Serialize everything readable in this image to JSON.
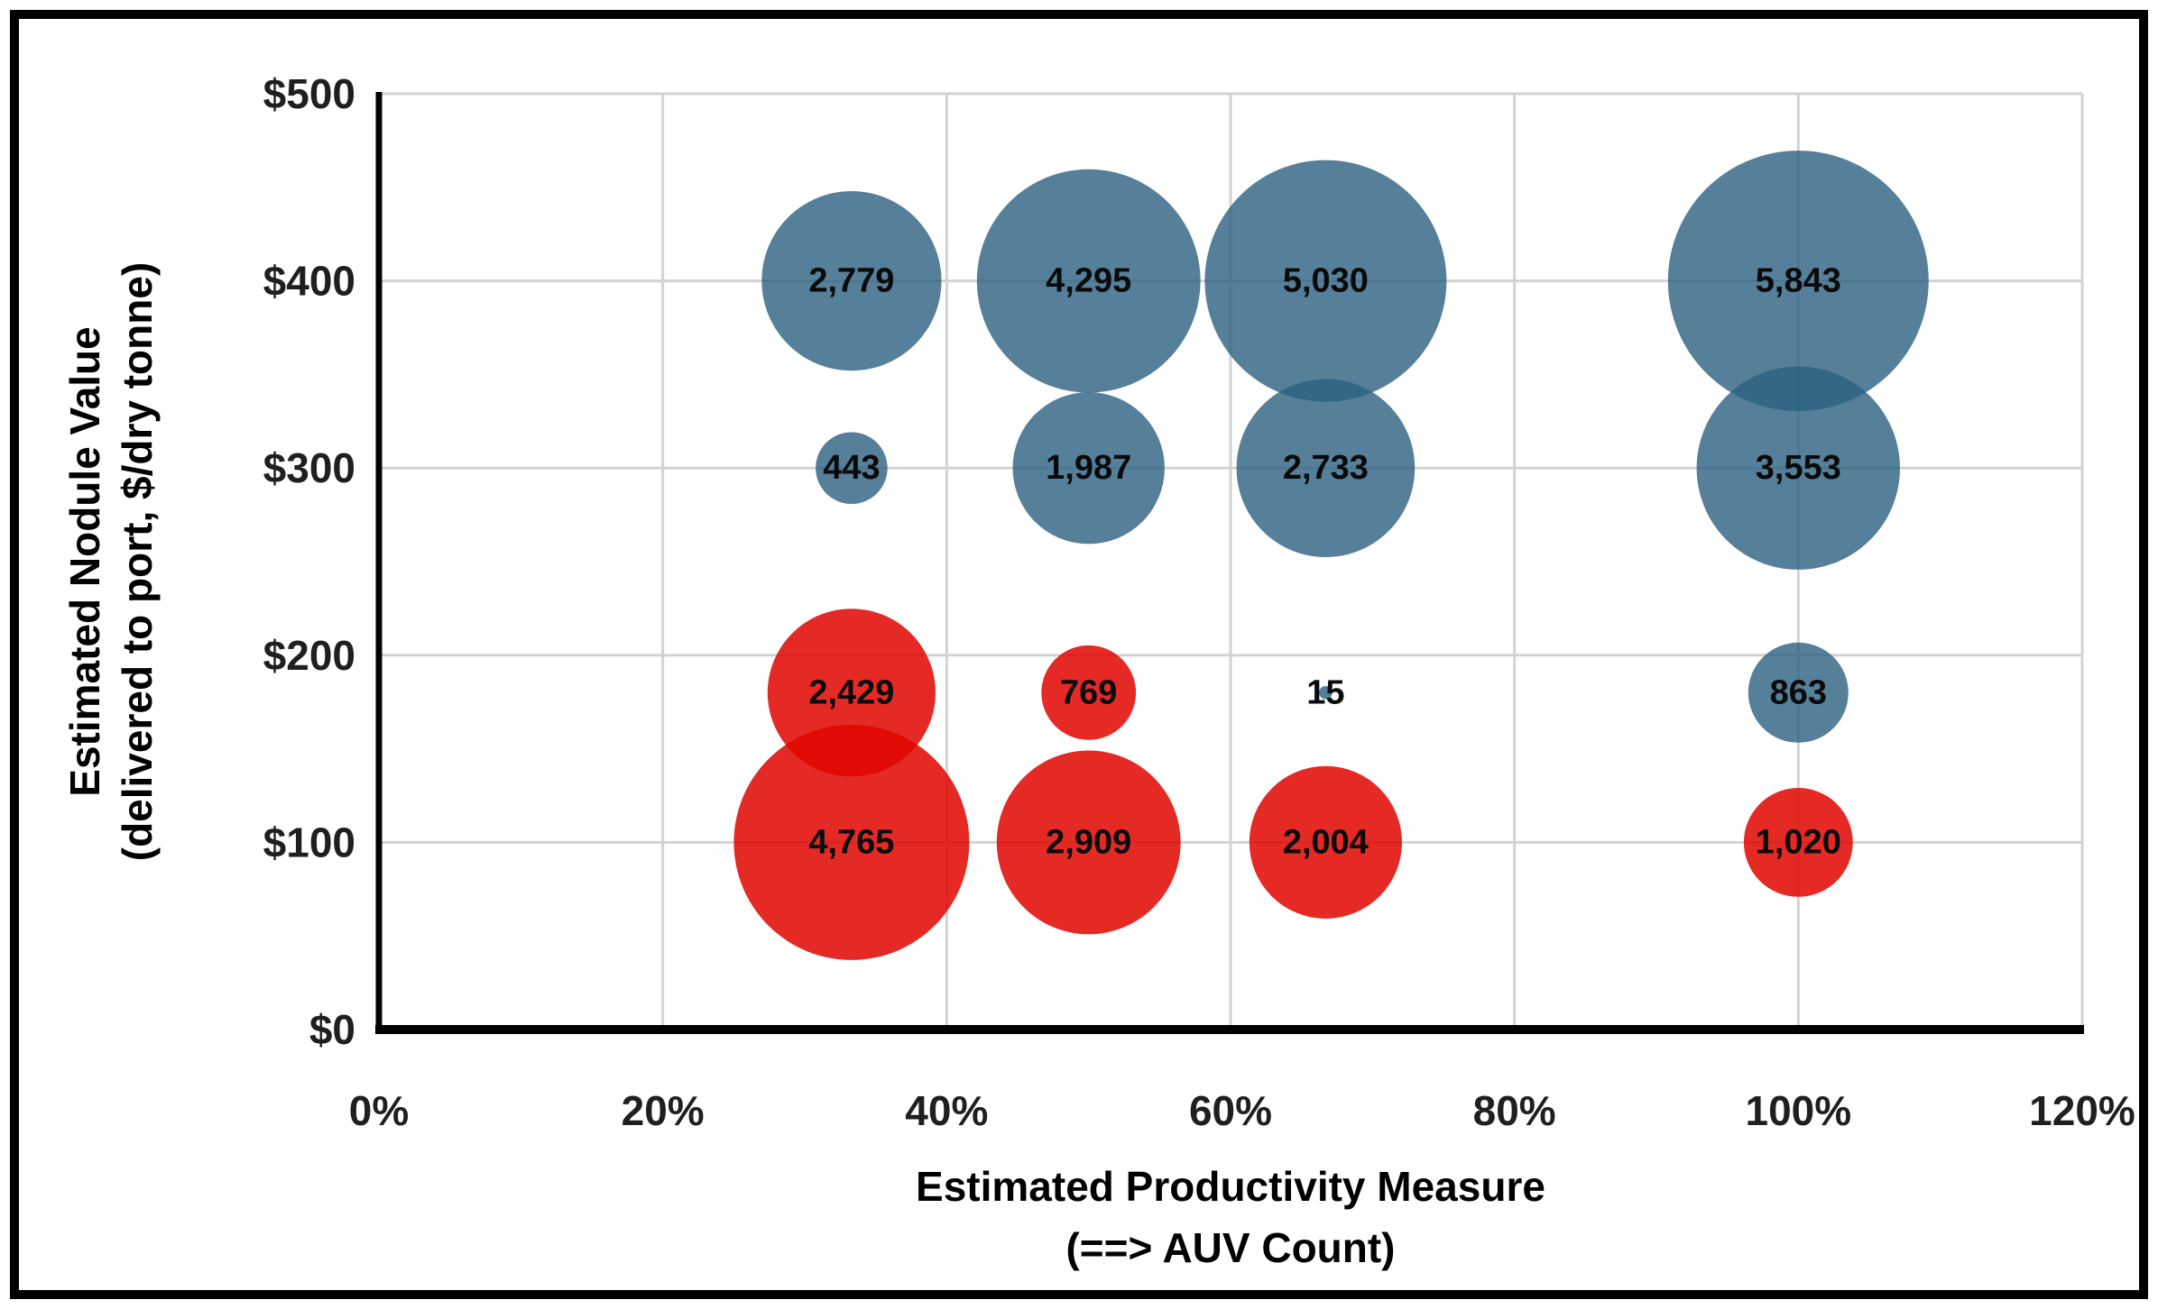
{
  "figure": {
    "background": "#FFFFFF",
    "border_color": "#000000"
  },
  "chart_data": {
    "type": "scatter",
    "variant": "bubble",
    "title": "",
    "xlabel_lines": [
      "Estimated Productivity Measure",
      "(==> AUV Count)"
    ],
    "ylabel_lines": [
      "Estimated Nodule Value",
      "(delivered to port, $/dry tonne)"
    ],
    "xlim": [
      0,
      120
    ],
    "ylim": [
      0,
      500
    ],
    "x_ticks": [
      {
        "value": 0,
        "label": "0%"
      },
      {
        "value": 20,
        "label": "20%"
      },
      {
        "value": 40,
        "label": "40%"
      },
      {
        "value": 60,
        "label": "60%"
      },
      {
        "value": 80,
        "label": "80%"
      },
      {
        "value": 100,
        "label": "100%"
      },
      {
        "value": 120,
        "label": "120%"
      }
    ],
    "y_ticks": [
      {
        "value": 0,
        "label": "$0"
      },
      {
        "value": 100,
        "label": "$100"
      },
      {
        "value": 200,
        "label": "$200"
      },
      {
        "value": 300,
        "label": "$300"
      },
      {
        "value": 400,
        "label": "$400"
      },
      {
        "value": 500,
        "label": "$500"
      }
    ],
    "grid": true,
    "legend": "none",
    "grid_color": "#D3D3D3",
    "axis_color": "#000000",
    "label_color": "#0A0A0A",
    "size_encoding": "bubble area proportional to value",
    "series": [
      {
        "name": "blue-bubbles",
        "apparent_color": "#56809A",
        "fill": "#2C6081",
        "opacity": 0.8,
        "points": [
          {
            "x": 33.3,
            "y": 400,
            "value": 2779,
            "label": "2,779"
          },
          {
            "x": 50,
            "y": 400,
            "value": 4295,
            "label": "4,295"
          },
          {
            "x": 66.7,
            "y": 400,
            "value": 5030,
            "label": "5,030"
          },
          {
            "x": 100,
            "y": 400,
            "value": 5843,
            "label": "5,843"
          },
          {
            "x": 33.3,
            "y": 300,
            "value": 443,
            "label": "443"
          },
          {
            "x": 50,
            "y": 300,
            "value": 1987,
            "label": "1,987"
          },
          {
            "x": 66.7,
            "y": 300,
            "value": 2733,
            "label": "2,733"
          },
          {
            "x": 100,
            "y": 300,
            "value": 3553,
            "label": "3,553"
          },
          {
            "x": 66.7,
            "y": 180,
            "value": 15,
            "label": "15"
          },
          {
            "x": 100,
            "y": 180,
            "value": 863,
            "label": "863"
          }
        ]
      },
      {
        "name": "red-bubbles",
        "apparent_color": "#E82A1E",
        "fill": "#E10500",
        "opacity": 0.85,
        "points": [
          {
            "x": 33.3,
            "y": 180,
            "value": 2429,
            "label": "2,429"
          },
          {
            "x": 50,
            "y": 180,
            "value": 769,
            "label": "769"
          },
          {
            "x": 33.3,
            "y": 100,
            "value": 4765,
            "label": "4,765"
          },
          {
            "x": 50,
            "y": 100,
            "value": 2909,
            "label": "2,909"
          },
          {
            "x": 66.7,
            "y": 100,
            "value": 2004,
            "label": "2,004"
          },
          {
            "x": 100,
            "y": 100,
            "value": 1020,
            "label": "1,020"
          }
        ]
      }
    ]
  }
}
